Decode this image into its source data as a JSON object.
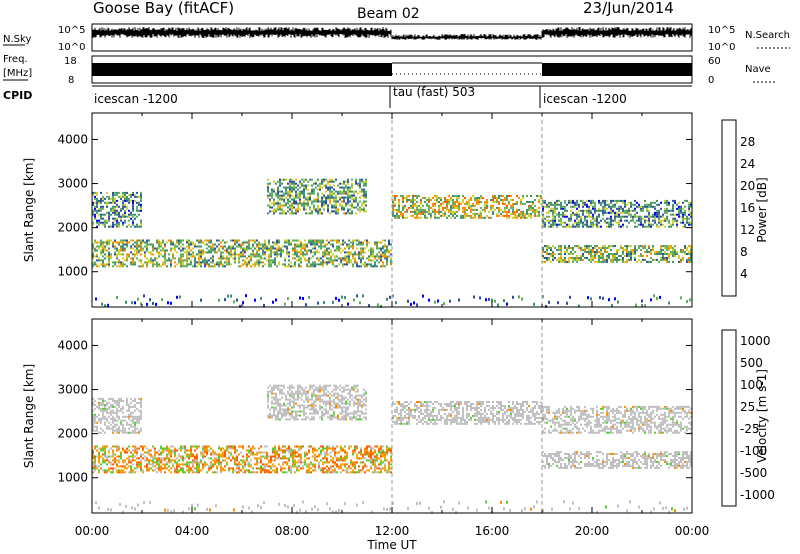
{
  "header": {
    "station": "Goose Bay (fitACF)",
    "beam": "Beam 02",
    "date": "23/Jun/2014"
  },
  "noise_panel": {
    "left_label": "N.Sky",
    "right_label": "N.Search",
    "left_ticks": [
      "10^5",
      "10^0"
    ],
    "right_ticks": [
      "10^5",
      "10^0"
    ]
  },
  "freq_panel": {
    "left_label_1": "Freq.",
    "left_label_2": "[MHz]",
    "right_label": "Nave",
    "left_ticks": [
      "18",
      "8"
    ],
    "right_ticks": [
      "60",
      "0"
    ]
  },
  "cpid_panel": {
    "label": "CPID",
    "segments": [
      {
        "name": "icescan -1200",
        "start_hour": 0,
        "end_hour": 12
      },
      {
        "name": "tau (fast) 503",
        "start_hour": 12,
        "end_hour": 18
      },
      {
        "name": "icescan -1200",
        "start_hour": 18,
        "end_hour": 24
      }
    ]
  },
  "colors": {
    "power_scale": [
      "#0000ff",
      "#2f4f9f",
      "#3f8f6f",
      "#5faf5f",
      "#cfd02f",
      "#ff8c00",
      "#ff5a00",
      "#ff0000"
    ],
    "velocity_scale": [
      "#ff0000",
      "#ff5a00",
      "#ff8c00",
      "#c0c0c0",
      "#c0c0c0",
      "#5acd32",
      "#3f8f6f",
      "#0000ff"
    ]
  },
  "chart_data": [
    {
      "type": "heatmap",
      "name": "power",
      "ylabel": "Slant Range [km]",
      "y_ticks": [
        1000,
        2000,
        3000,
        4000
      ],
      "ylim": [
        200,
        4600
      ],
      "xlim": [
        0,
        24
      ],
      "colorbar": {
        "label": "Power [dB]",
        "ticks": [
          "28",
          "24",
          "20",
          "16",
          "12",
          "8",
          "4"
        ],
        "range": [
          0,
          32
        ]
      },
      "echo_bands": [
        {
          "start_hour": 0,
          "end_hour": 2,
          "range_low": 2000,
          "range_high": 2800,
          "power": 10
        },
        {
          "start_hour": 0,
          "end_hour": 12,
          "range_low": 1100,
          "range_high": 1700,
          "power": 14
        },
        {
          "start_hour": 7,
          "end_hour": 11,
          "range_low": 2300,
          "range_high": 3100,
          "power": 12
        },
        {
          "start_hour": 12,
          "end_hour": 18,
          "range_low": 2200,
          "range_high": 2700,
          "power": 18
        },
        {
          "start_hour": 18,
          "end_hour": 24,
          "range_low": 2000,
          "range_high": 2600,
          "power": 10
        },
        {
          "start_hour": 18,
          "end_hour": 24,
          "range_low": 1200,
          "range_high": 1600,
          "power": 14
        }
      ]
    },
    {
      "type": "heatmap",
      "name": "velocity",
      "ylabel": "Slant Range [km]",
      "xlabel": "Time UT",
      "y_ticks": [
        1000,
        2000,
        3000,
        4000
      ],
      "ylim": [
        200,
        4600
      ],
      "xlim": [
        0,
        24
      ],
      "x_ticks": [
        "00:00",
        "04:00",
        "08:00",
        "12:00",
        "16:00",
        "20:00",
        "00:00"
      ],
      "colorbar": {
        "label": "Velocity [m s-1]",
        "ticks": [
          "1000",
          "500",
          "100",
          "25",
          "-25",
          "-100",
          "-500",
          "-1000"
        ]
      },
      "echo_bands": [
        {
          "start_hour": 0,
          "end_hour": 12,
          "range_low": 1100,
          "range_high": 1700,
          "velocity": -100
        },
        {
          "start_hour": 0,
          "end_hour": 2,
          "range_low": 2000,
          "range_high": 2800,
          "velocity": 0
        },
        {
          "start_hour": 7,
          "end_hour": 11,
          "range_low": 2300,
          "range_high": 3100,
          "velocity": 0
        },
        {
          "start_hour": 12,
          "end_hour": 18,
          "range_low": 2200,
          "range_high": 2700,
          "velocity": 0
        },
        {
          "start_hour": 18,
          "end_hour": 24,
          "range_low": 2000,
          "range_high": 2600,
          "velocity": 0
        },
        {
          "start_hour": 18,
          "end_hour": 24,
          "range_low": 1200,
          "range_high": 1600,
          "velocity": 0
        }
      ]
    }
  ]
}
